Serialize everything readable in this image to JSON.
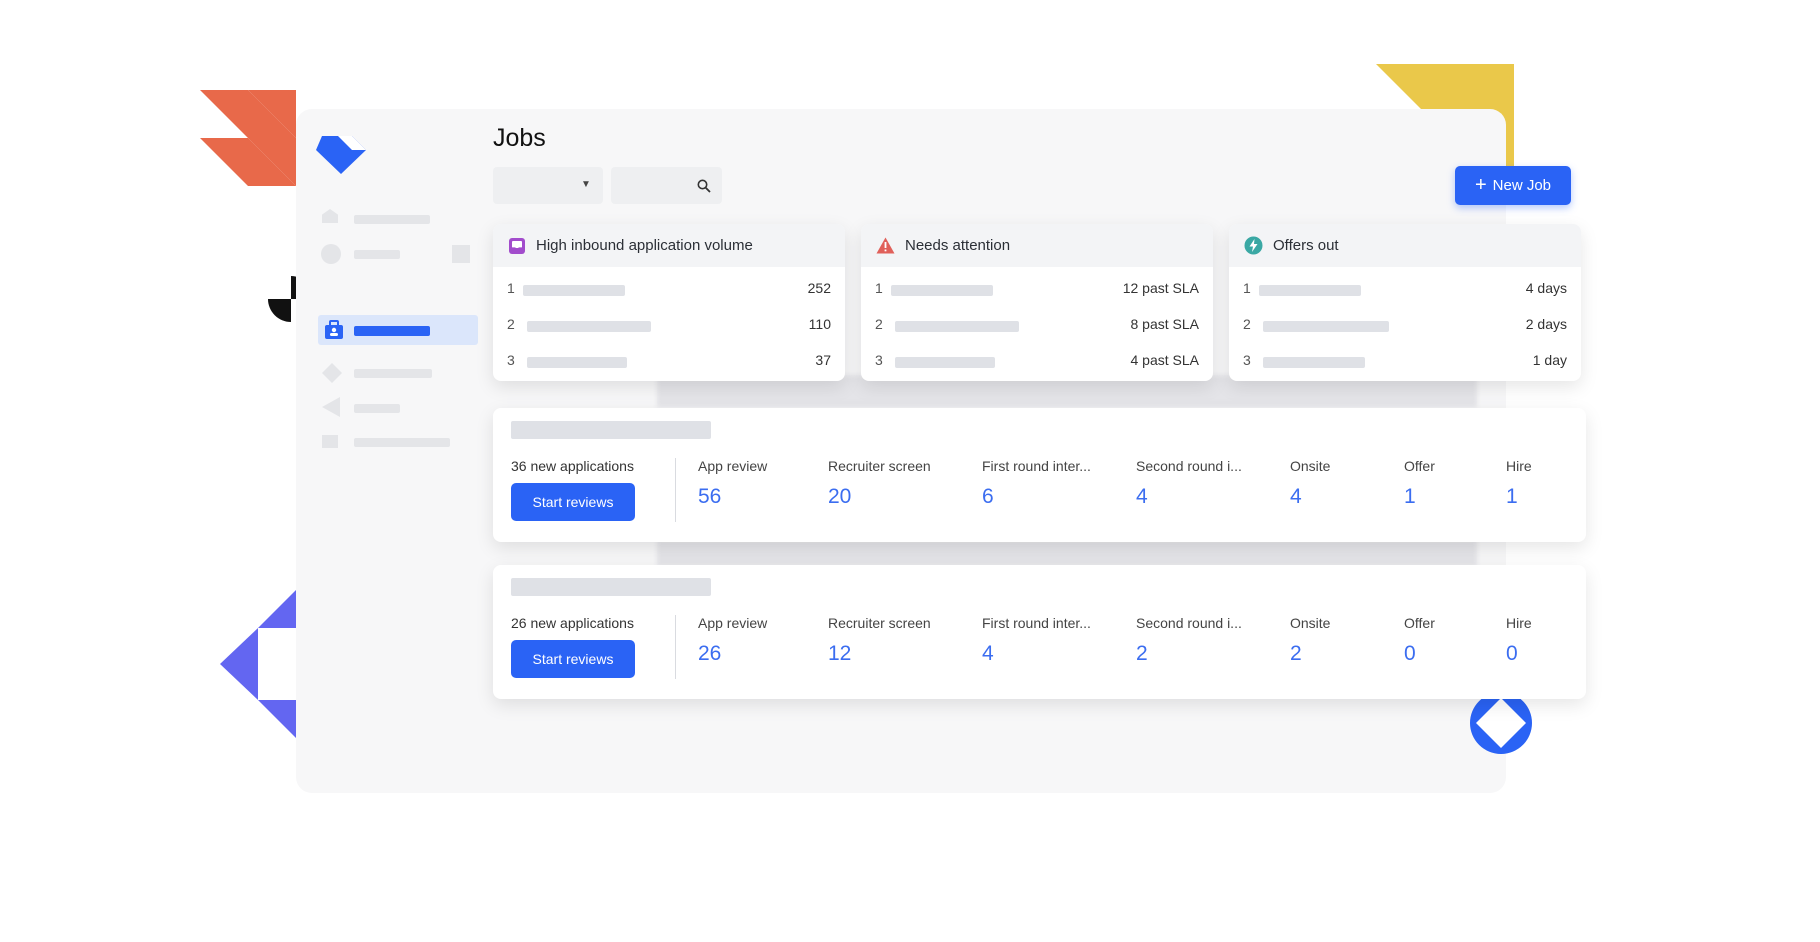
{
  "page": {
    "title": "Jobs"
  },
  "header": {
    "new_job_label": "New Job"
  },
  "alert_cards": [
    {
      "title": "High inbound application volume",
      "icon": "inbox-icon",
      "accent": "#a24ccc",
      "rows": [
        {
          "rank": "1",
          "value": "252"
        },
        {
          "rank": "2",
          "value": "110"
        },
        {
          "rank": "3",
          "value": "37"
        }
      ]
    },
    {
      "title": "Needs attention",
      "icon": "warning-icon",
      "accent": "#e0605a",
      "rows": [
        {
          "rank": "1",
          "value": "12 past SLA"
        },
        {
          "rank": "2",
          "value": "8 past SLA"
        },
        {
          "rank": "3",
          "value": "4 past SLA"
        }
      ]
    },
    {
      "title": "Offers out",
      "icon": "lightning-icon",
      "accent": "#3aa8a4",
      "rows": [
        {
          "rank": "1",
          "value": "4 days"
        },
        {
          "rank": "2",
          "value": "2 days"
        },
        {
          "rank": "3",
          "value": "1 day"
        }
      ]
    }
  ],
  "jobs": [
    {
      "new_applications": "36 new applications",
      "button_label": "Start reviews",
      "stages": [
        {
          "label": "App review",
          "count": "56"
        },
        {
          "label": "Recruiter screen",
          "count": "20"
        },
        {
          "label": "First round inter...",
          "count": "6"
        },
        {
          "label": "Second round i...",
          "count": "4"
        },
        {
          "label": "Onsite",
          "count": "4"
        },
        {
          "label": "Offer",
          "count": "1"
        },
        {
          "label": "Hire",
          "count": "1"
        }
      ]
    },
    {
      "new_applications": "26 new applications",
      "button_label": "Start reviews",
      "stages": [
        {
          "label": "App review",
          "count": "26"
        },
        {
          "label": "Recruiter screen",
          "count": "12"
        },
        {
          "label": "First round inter...",
          "count": "4"
        },
        {
          "label": "Second round i...",
          "count": "2"
        },
        {
          "label": "Onsite",
          "count": "2"
        },
        {
          "label": "Offer",
          "count": "0"
        },
        {
          "label": "Hire",
          "count": "0"
        }
      ]
    }
  ],
  "colors": {
    "primary": "#2a63f5",
    "count_blue": "#3b6df0",
    "accent_orange": "#e8694a",
    "accent_yellow": "#eac84a",
    "accent_violet": "#6366f1"
  }
}
